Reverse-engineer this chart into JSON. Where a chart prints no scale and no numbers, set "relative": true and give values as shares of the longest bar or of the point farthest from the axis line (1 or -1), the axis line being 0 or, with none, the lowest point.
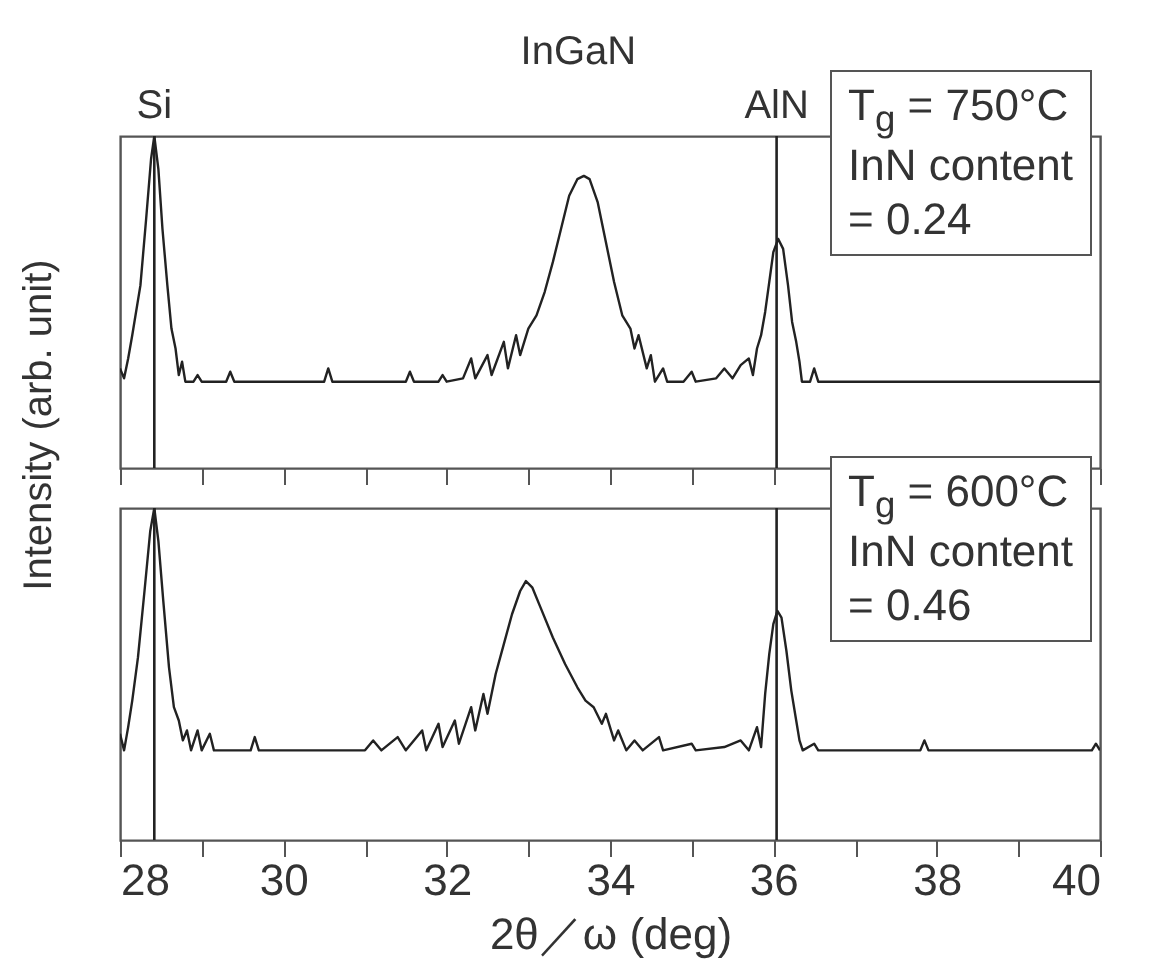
{
  "chart_data": [
    {
      "type": "line",
      "relative": true,
      "ylabel": "Intensity (arb. unit)",
      "xlim": [
        28,
        40
      ],
      "xticks": [
        28,
        {
          "value": 29,
          "label": null
        },
        30,
        {
          "value": 31,
          "label": null
        },
        32,
        {
          "value": 33,
          "label": null
        },
        34,
        {
          "value": 35,
          "label": null
        },
        36,
        {
          "value": 37,
          "label": null
        },
        38,
        {
          "value": 39,
          "label": null
        },
        40
      ],
      "grid": false,
      "tick_labels": false,
      "line_style": "solid",
      "marker": "none",
      "series": [
        {
          "color": "#222222",
          "x": [
            28.0,
            28.05,
            28.1,
            28.15,
            28.25,
            28.32,
            28.38,
            28.42,
            28.47,
            28.52,
            28.58,
            28.63,
            28.68,
            28.72,
            28.76,
            28.8,
            28.9,
            28.95,
            29.0,
            29.3,
            29.35,
            29.4,
            30.0,
            30.5,
            30.55,
            30.6,
            31.0,
            31.5,
            31.55,
            31.6,
            31.9,
            31.95,
            32.0,
            32.2,
            32.3,
            32.35,
            32.5,
            32.55,
            32.7,
            32.75,
            32.85,
            32.9,
            33.0,
            33.1,
            33.2,
            33.3,
            33.4,
            33.5,
            33.6,
            33.68,
            33.75,
            33.85,
            33.95,
            34.05,
            34.15,
            34.25,
            34.3,
            34.35,
            34.45,
            34.5,
            34.55,
            34.65,
            34.7,
            34.9,
            35.0,
            35.05,
            35.3,
            35.4,
            35.5,
            35.6,
            35.7,
            35.75,
            35.8,
            35.85,
            35.9,
            35.95,
            36.0,
            36.06,
            36.12,
            36.18,
            36.23,
            36.28,
            36.32,
            36.35,
            36.45,
            36.5,
            36.55,
            37.0,
            37.5,
            38.0,
            38.5,
            39.0,
            39.5,
            40.0
          ],
          "values": [
            0.3,
            0.27,
            0.33,
            0.4,
            0.55,
            0.75,
            0.93,
            1.0,
            0.9,
            0.72,
            0.55,
            0.42,
            0.36,
            0.28,
            0.32,
            0.26,
            0.26,
            0.28,
            0.26,
            0.26,
            0.29,
            0.26,
            0.26,
            0.26,
            0.3,
            0.26,
            0.26,
            0.26,
            0.29,
            0.26,
            0.26,
            0.28,
            0.26,
            0.27,
            0.33,
            0.27,
            0.34,
            0.28,
            0.38,
            0.3,
            0.4,
            0.34,
            0.42,
            0.46,
            0.53,
            0.62,
            0.72,
            0.82,
            0.87,
            0.88,
            0.87,
            0.8,
            0.68,
            0.56,
            0.46,
            0.42,
            0.36,
            0.4,
            0.3,
            0.34,
            0.26,
            0.3,
            0.26,
            0.26,
            0.29,
            0.26,
            0.27,
            0.3,
            0.27,
            0.31,
            0.33,
            0.28,
            0.36,
            0.4,
            0.47,
            0.56,
            0.65,
            0.69,
            0.66,
            0.55,
            0.44,
            0.38,
            0.32,
            0.26,
            0.26,
            0.3,
            0.26,
            0.26,
            0.26,
            0.26,
            0.26,
            0.26,
            0.26,
            0.26
          ]
        }
      ],
      "ref_lines": [
        {
          "axis": "x",
          "value": 28.42,
          "label": "Si",
          "color": "#222222"
        },
        {
          "axis": "x",
          "value": 36.04,
          "label": "AlN",
          "color": "#222222"
        }
      ],
      "annotations": [
        "InGaN",
        "T$_{g}$ = 750°C\nInN content\n= 0.24"
      ]
    },
    {
      "type": "line",
      "relative": true,
      "xlabel": "2θ／ω  (deg)",
      "xlim": [
        28,
        40
      ],
      "xticks": [
        28,
        {
          "value": 29,
          "label": null
        },
        30,
        {
          "value": 31,
          "label": null
        },
        32,
        {
          "value": 33,
          "label": null
        },
        34,
        {
          "value": 35,
          "label": null
        },
        36,
        {
          "value": 37,
          "label": null
        },
        38,
        {
          "value": 39,
          "label": null
        },
        40
      ],
      "grid": false,
      "tick_labels": "x",
      "line_style": "solid",
      "marker": "none",
      "series": [
        {
          "color": "#222222",
          "x": [
            28.0,
            28.05,
            28.1,
            28.15,
            28.22,
            28.3,
            28.37,
            28.42,
            28.47,
            28.53,
            28.6,
            28.66,
            28.72,
            28.77,
            28.82,
            28.87,
            28.95,
            29.0,
            29.1,
            29.15,
            29.6,
            29.65,
            29.7,
            30.5,
            31.0,
            31.1,
            31.2,
            31.4,
            31.5,
            31.7,
            31.75,
            31.9,
            31.95,
            32.1,
            32.15,
            32.3,
            32.35,
            32.45,
            32.5,
            32.6,
            32.7,
            32.8,
            32.9,
            32.97,
            33.05,
            33.15,
            33.3,
            33.45,
            33.6,
            33.7,
            33.8,
            33.9,
            33.95,
            34.05,
            34.1,
            34.2,
            34.3,
            34.4,
            34.6,
            34.65,
            35.0,
            35.05,
            35.4,
            35.6,
            35.7,
            35.8,
            35.85,
            35.9,
            35.95,
            36.0,
            36.05,
            36.1,
            36.16,
            36.22,
            36.28,
            36.32,
            36.36,
            36.5,
            36.55,
            37.0,
            37.8,
            37.85,
            37.9,
            38.5,
            39.5,
            39.9,
            39.95,
            40.0
          ],
          "values": [
            0.32,
            0.27,
            0.34,
            0.42,
            0.55,
            0.75,
            0.93,
            1.0,
            0.9,
            0.72,
            0.52,
            0.4,
            0.36,
            0.3,
            0.33,
            0.27,
            0.33,
            0.27,
            0.32,
            0.27,
            0.27,
            0.31,
            0.27,
            0.27,
            0.27,
            0.3,
            0.27,
            0.31,
            0.27,
            0.33,
            0.27,
            0.35,
            0.28,
            0.36,
            0.29,
            0.4,
            0.33,
            0.44,
            0.38,
            0.5,
            0.59,
            0.68,
            0.75,
            0.78,
            0.76,
            0.7,
            0.61,
            0.53,
            0.46,
            0.42,
            0.4,
            0.35,
            0.38,
            0.3,
            0.33,
            0.27,
            0.3,
            0.27,
            0.31,
            0.27,
            0.29,
            0.27,
            0.28,
            0.3,
            0.27,
            0.34,
            0.28,
            0.44,
            0.56,
            0.65,
            0.69,
            0.67,
            0.57,
            0.45,
            0.36,
            0.3,
            0.27,
            0.29,
            0.27,
            0.27,
            0.27,
            0.3,
            0.27,
            0.27,
            0.27,
            0.27,
            0.29,
            0.27
          ]
        }
      ],
      "ref_lines": [
        {
          "axis": "x",
          "value": 28.42,
          "color": "#222222"
        },
        {
          "axis": "x",
          "value": 36.04,
          "color": "#222222"
        }
      ],
      "annotations": [
        "T$_{g}$ = 600°C\nInN content\n= 0.46"
      ]
    }
  ]
}
